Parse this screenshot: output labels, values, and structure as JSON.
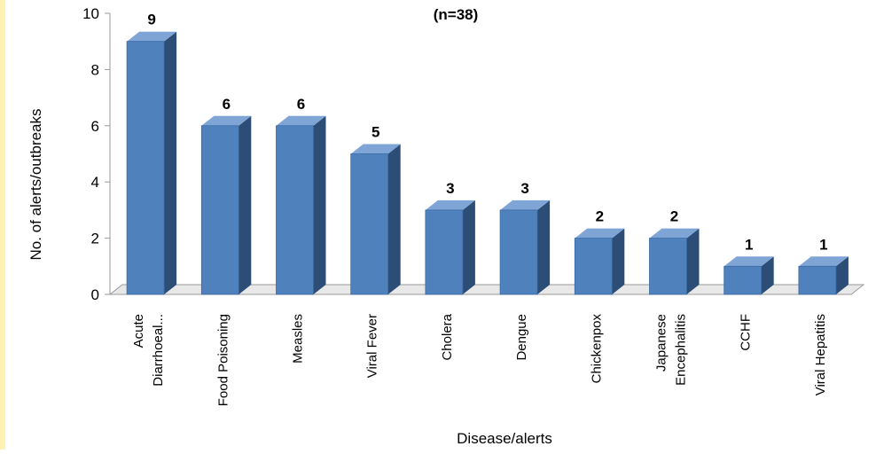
{
  "chart_data": {
    "type": "bar",
    "title": "",
    "subtitle": "(n=38)",
    "xlabel": "Disease/alerts",
    "ylabel": "No. of alerts/outbreaks",
    "ylim": [
      0,
      10
    ],
    "yticks": [
      "0",
      "2",
      "4",
      "6",
      "8",
      "10"
    ],
    "grid": false,
    "categories": [
      [
        "Acute",
        "Diarrhoeal..."
      ],
      [
        "Food Poisoning"
      ],
      [
        "Measles"
      ],
      [
        "Viral Fever"
      ],
      [
        "Cholera"
      ],
      [
        "Dengue"
      ],
      [
        "Chickenpox"
      ],
      [
        "Japanese",
        "Encephalitis"
      ],
      [
        "CCHF"
      ],
      [
        "Viral Hepatitis"
      ]
    ],
    "values": [
      9,
      6,
      6,
      5,
      3,
      3,
      2,
      2,
      1,
      1
    ],
    "bar_color": "#4f81bd",
    "bar_side_color": "#2c4d75",
    "bar_top_color": "#7fa4d6"
  }
}
